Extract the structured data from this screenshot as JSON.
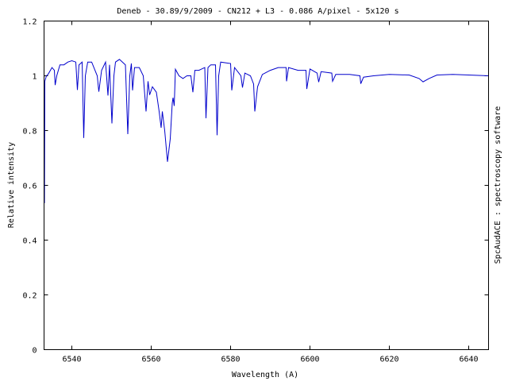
{
  "chart_data": {
    "type": "line",
    "title": "Deneb - 30.89/9/2009 - CN212 + L3 - 0.086 A/pixel - 5x120 s",
    "xlabel": "Wavelength (A)",
    "ylabel": "Relative intensity",
    "right_label": "SpcAudACE : spectroscopy software",
    "xlim": [
      6533,
      6645
    ],
    "ylim": [
      0,
      1.2
    ],
    "xticks": [
      6540,
      6560,
      6580,
      6600,
      6620,
      6640
    ],
    "yticks": [
      0,
      0.2,
      0.4,
      0.6,
      0.8,
      1,
      1.2
    ],
    "grid": false,
    "line_color": "#0000cc",
    "series": [
      {
        "x": [
          6533.1,
          6533.2,
          6533.6,
          6534,
          6535,
          6535.6,
          6535.8,
          6536.2,
          6537,
          6538,
          6539,
          6540,
          6541,
          6541.4,
          6541.8,
          6542.6,
          6543.0,
          6543.4,
          6544,
          6545,
          6546.4,
          6546.8,
          6547.5,
          6548.5,
          6549.1,
          6549.5,
          6550.1,
          6550.6,
          6551,
          6552,
          6553.5,
          6554.1,
          6554.6,
          6555,
          6555.3,
          6555.8,
          6557,
          6558,
          6558.7,
          6559.2,
          6559.6,
          6560.3,
          6561.3,
          6562,
          6562.5,
          6562.8,
          6563.4,
          6564.1,
          6564.8,
          6565.3,
          6565.5,
          6565.8,
          6566.1,
          6567,
          6568,
          6569,
          6570,
          6570.5,
          6571,
          6572,
          6573.5,
          6573.8,
          6574.3,
          6575,
          6576.2,
          6576.6,
          6577,
          6577.5,
          6580,
          6580.3,
          6581,
          6582.6,
          6583,
          6583.6,
          6585,
          6585.8,
          6586.1,
          6586.8,
          6588,
          6590,
          6592,
          6594,
          6594.1,
          6594.6,
          6597,
          6599,
          6599.2,
          6600,
          6601.8,
          6602.2,
          6602.8,
          6605.5,
          6605.7,
          6606.5,
          6610,
          6612.6,
          6612.8,
          6613.5,
          6616,
          6620,
          6625,
          6627.5,
          6628.5,
          6630,
          6632,
          6636,
          6640,
          6645
        ],
        "y": [
          0.535,
          0.98,
          1.0,
          1.005,
          1.03,
          1.02,
          0.966,
          1.0,
          1.04,
          1.04,
          1.05,
          1.055,
          1.05,
          0.948,
          1.04,
          1.05,
          0.773,
          1.0,
          1.05,
          1.05,
          1.0,
          0.942,
          1.02,
          1.05,
          0.928,
          1.04,
          0.826,
          1.0,
          1.05,
          1.06,
          1.04,
          0.787,
          1.0,
          1.045,
          0.947,
          1.03,
          1.03,
          1.0,
          0.87,
          0.98,
          0.93,
          0.96,
          0.94,
          0.87,
          0.81,
          0.87,
          0.8,
          0.686,
          0.77,
          0.9,
          0.92,
          0.89,
          1.024,
          1.0,
          0.99,
          1.0,
          1.0,
          0.94,
          1.02,
          1.02,
          1.03,
          0.845,
          1.03,
          1.04,
          1.04,
          0.783,
          1.0,
          1.05,
          1.045,
          0.947,
          1.03,
          1.0,
          0.957,
          1.01,
          1.0,
          0.97,
          0.87,
          0.96,
          1.005,
          1.02,
          1.03,
          1.03,
          0.98,
          1.03,
          1.02,
          1.02,
          0.952,
          1.025,
          1.01,
          0.977,
          1.015,
          1.01,
          0.98,
          1.005,
          1.005,
          1.0,
          0.971,
          0.995,
          1.0,
          1.005,
          1.003,
          0.99,
          0.978,
          0.99,
          1.003,
          1.005,
          1.003,
          1.0
        ]
      }
    ]
  }
}
